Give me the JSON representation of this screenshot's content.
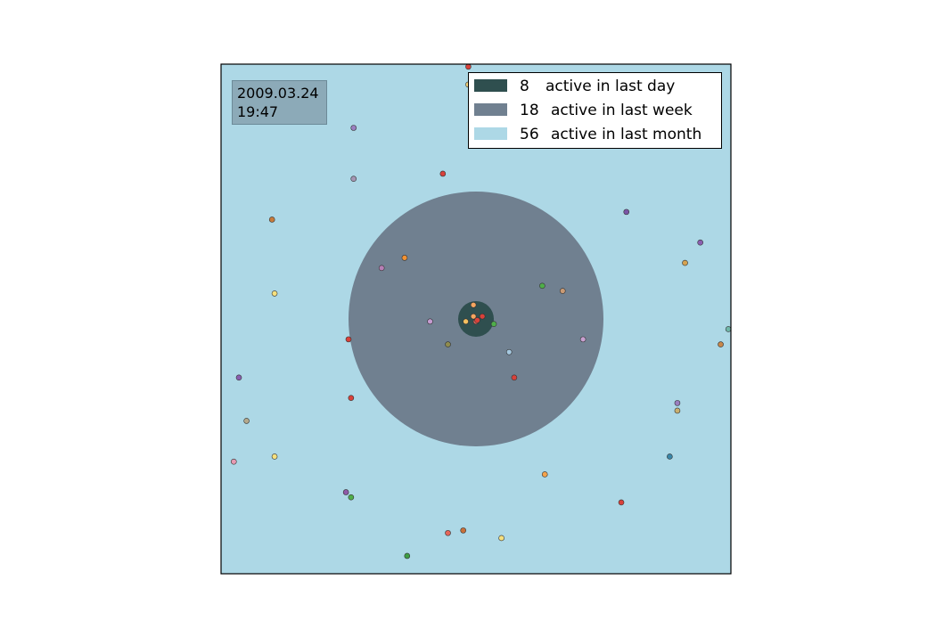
{
  "colors": {
    "background": "#add8e6",
    "day_ring": "#2f4f4f",
    "week_ring": "#708090",
    "month_ring": "#add8e6",
    "timestamp_box": "#8caab8",
    "axes_frame": "#000000"
  },
  "timestamp": {
    "date": "2009.03.24",
    "time": "19:47"
  },
  "legend": {
    "placement": "top-right",
    "items": [
      {
        "count": "8",
        "label": "active in last day",
        "color": "#2f4f4f"
      },
      {
        "count": "18",
        "label": "active in last week",
        "color": "#708090"
      },
      {
        "count": "56",
        "label": "active in last month",
        "color": "#add8e6"
      }
    ]
  },
  "chart_data": {
    "type": "scatter",
    "axes_visible": false,
    "xlim": [
      -1,
      1
    ],
    "ylim": [
      -1,
      1
    ],
    "rings": [
      {
        "name": "active in last day",
        "radius": 0.07
      },
      {
        "name": "active in last week",
        "radius": 0.5
      }
    ],
    "points": [
      {
        "x": -0.03,
        "y": 0.92,
        "color": "#f2d27a"
      },
      {
        "x": -0.48,
        "y": 0.75,
        "color": "#9a7fc0"
      },
      {
        "x": -0.13,
        "y": 0.57,
        "color": "#d9413a"
      },
      {
        "x": -0.48,
        "y": 0.55,
        "color": "#a596b3"
      },
      {
        "x": -0.8,
        "y": 0.39,
        "color": "#c77a3a"
      },
      {
        "x": 0.59,
        "y": 0.42,
        "color": "#7a55a6"
      },
      {
        "x": 0.88,
        "y": 0.3,
        "color": "#8a5fb0"
      },
      {
        "x": 0.82,
        "y": 0.22,
        "color": "#d6a350"
      },
      {
        "x": -0.28,
        "y": 0.24,
        "color": "#f39233"
      },
      {
        "x": -0.37,
        "y": 0.2,
        "color": "#b77fb6"
      },
      {
        "x": 0.26,
        "y": 0.13,
        "color": "#4fae4a"
      },
      {
        "x": 0.34,
        "y": 0.11,
        "color": "#c99a74"
      },
      {
        "x": -0.79,
        "y": 0.1,
        "color": "#f5e07e"
      },
      {
        "x": -0.01,
        "y": 0.055,
        "color": "#f5a560"
      },
      {
        "x": -0.18,
        "y": -0.01,
        "color": "#c59bd0"
      },
      {
        "x": 0.07,
        "y": -0.02,
        "color": "#4fae4a"
      },
      {
        "x": 0.99,
        "y": -0.04,
        "color": "#6fb7a9"
      },
      {
        "x": 0.42,
        "y": -0.08,
        "color": "#c7a0d0"
      },
      {
        "x": -0.5,
        "y": -0.08,
        "color": "#d9413a"
      },
      {
        "x": 0.96,
        "y": -0.1,
        "color": "#c8874a"
      },
      {
        "x": -0.11,
        "y": -0.1,
        "color": "#8f8c4e"
      },
      {
        "x": 0.13,
        "y": -0.13,
        "color": "#a5c8e0"
      },
      {
        "x": 0.15,
        "y": -0.23,
        "color": "#d9413a"
      },
      {
        "x": -0.93,
        "y": -0.23,
        "color": "#8a5fb0"
      },
      {
        "x": -0.49,
        "y": -0.31,
        "color": "#d9413a"
      },
      {
        "x": 0.79,
        "y": -0.33,
        "color": "#9a7fc0"
      },
      {
        "x": 0.79,
        "y": -0.36,
        "color": "#c9b070"
      },
      {
        "x": -0.9,
        "y": -0.4,
        "color": "#b5a98c"
      },
      {
        "x": 0.76,
        "y": -0.54,
        "color": "#3a86a8"
      },
      {
        "x": -0.95,
        "y": -0.56,
        "color": "#e79ab2"
      },
      {
        "x": -0.79,
        "y": -0.54,
        "color": "#f5e07e"
      },
      {
        "x": 0.27,
        "y": -0.61,
        "color": "#f3a24a"
      },
      {
        "x": -0.51,
        "y": -0.68,
        "color": "#8f5aa8"
      },
      {
        "x": -0.49,
        "y": -0.7,
        "color": "#4fae4a"
      },
      {
        "x": 0.57,
        "y": -0.72,
        "color": "#d9413a"
      },
      {
        "x": -0.11,
        "y": -0.84,
        "color": "#e5665a"
      },
      {
        "x": -0.05,
        "y": -0.83,
        "color": "#c8703a"
      },
      {
        "x": 0.1,
        "y": -0.86,
        "color": "#f5e07e"
      },
      {
        "x": -0.27,
        "y": -0.93,
        "color": "#3f9e44"
      },
      {
        "x": -0.03,
        "y": 0.99,
        "color": "#d9413a"
      },
      {
        "x": -0.01,
        "y": 0.01,
        "color": "#f5a560"
      },
      {
        "x": 0.025,
        "y": 0.01,
        "color": "#d9413a"
      },
      {
        "x": -0.04,
        "y": -0.01,
        "color": "#f5c060"
      },
      {
        "x": 0.0,
        "y": -0.01,
        "color": "#e5665a"
      },
      {
        "x": 0.005,
        "y": -0.005,
        "color": "#d9413a"
      }
    ]
  }
}
